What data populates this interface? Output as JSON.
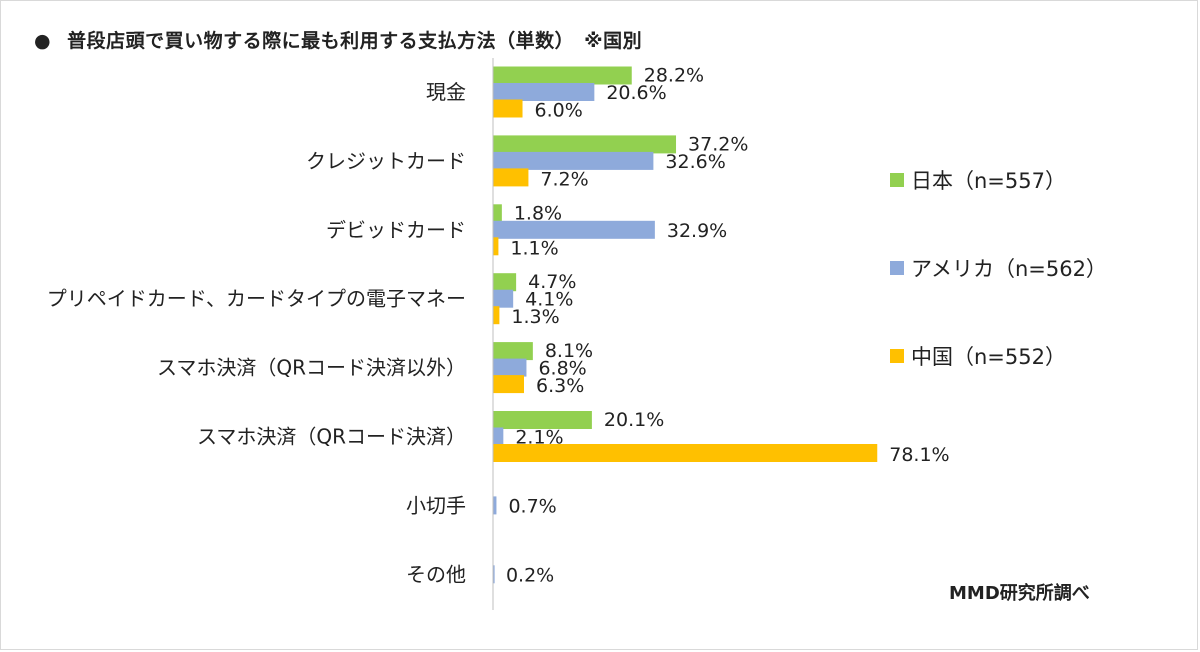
{
  "title": "●　普段店頭で買い物する際に最も利用する支払方法（単数）　※国別",
  "title_bullet": "●",
  "title_text": "普段店頭で買い物する際に最も利用する支払方法（単数）　※国別",
  "source": "MMD研究所調べ",
  "chart_data": {
    "type": "bar",
    "orientation": "horizontal",
    "categories": [
      "現金",
      "クレジットカード",
      "デビッドカード",
      "プリペイドカード、カードタイプの電子マネー",
      "スマホ決済（QRコード決済以外）",
      "スマホ決済（QRコード決済）",
      "小切手",
      "その他"
    ],
    "series": [
      {
        "name": "日本（n=557）",
        "color": "#92d050",
        "values": [
          28.2,
          37.2,
          1.8,
          4.7,
          8.1,
          20.1,
          null,
          null
        ]
      },
      {
        "name": "アメリカ（n=562）",
        "color": "#8eaadb",
        "values": [
          20.6,
          32.6,
          32.9,
          4.1,
          6.8,
          2.1,
          0.7,
          0.2
        ]
      },
      {
        "name": "中国（n=552）",
        "color": "#ffc000",
        "values": [
          6.0,
          7.2,
          1.1,
          1.3,
          6.3,
          78.1,
          null,
          null
        ]
      }
    ],
    "value_suffix": "%",
    "xlim": [
      0,
      100
    ],
    "grid": false,
    "legend_position": "right"
  }
}
